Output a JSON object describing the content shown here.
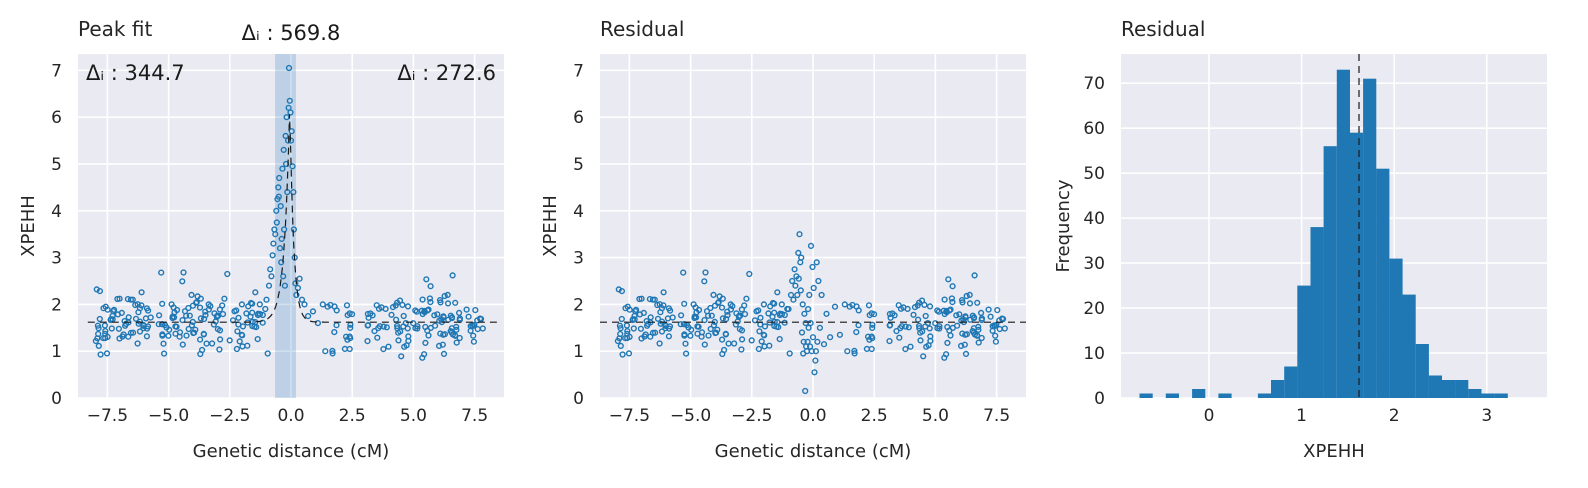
{
  "chart_data": [
    {
      "type": "scatter",
      "title": "Peak fit",
      "xlabel": "Genetic distance (cM)",
      "ylabel": "XPEHH",
      "xlim": [
        -8.7,
        8.7
      ],
      "ylim": [
        0,
        7.35
      ],
      "xticks": [
        -7.5,
        -5.0,
        -2.5,
        0.0,
        2.5,
        5.0,
        7.5
      ],
      "xtick_labels": [
        "−7.5",
        "−5.0",
        "−2.5",
        "0.0",
        "2.5",
        "5.0",
        "7.5"
      ],
      "yticks": [
        0,
        1,
        2,
        3,
        4,
        5,
        6,
        7
      ],
      "ytick_labels": [
        "0",
        "1",
        "2",
        "3",
        "4",
        "5",
        "6",
        "7"
      ],
      "grid": true,
      "baseline": 1.62,
      "peak": {
        "center": -0.05,
        "height": 6.3,
        "left_width": 0.35,
        "right_width": 0.25
      },
      "shaded_region": [
        -0.65,
        0.2
      ],
      "annotations": [
        {
          "text": "Δᵢ : 569.8",
          "position": "above-center"
        },
        {
          "text": "Δᵢ : 344.7",
          "position": "top-left"
        },
        {
          "text": "Δᵢ : 272.6",
          "position": "top-right"
        }
      ],
      "peak_points": [
        [
          -1.0,
          2.1
        ],
        [
          -0.9,
          2.4
        ],
        [
          -0.85,
          2.75
        ],
        [
          -0.8,
          2.6
        ],
        [
          -0.75,
          3.05
        ],
        [
          -0.72,
          3.3
        ],
        [
          -0.68,
          3.6
        ],
        [
          -0.64,
          3.5
        ],
        [
          -0.6,
          4.0
        ],
        [
          -0.58,
          3.75
        ],
        [
          -0.55,
          4.25
        ],
        [
          -0.52,
          4.5
        ],
        [
          -0.5,
          4.3
        ],
        [
          -0.48,
          4.7
        ],
        [
          -0.45,
          3.2
        ],
        [
          -0.42,
          4.1
        ],
        [
          -0.4,
          2.9
        ],
        [
          -0.38,
          3.4
        ],
        [
          -0.35,
          4.9
        ],
        [
          -0.32,
          2.6
        ],
        [
          -0.3,
          5.3
        ],
        [
          -0.28,
          3.6
        ],
        [
          -0.25,
          2.4
        ],
        [
          -0.22,
          5.6
        ],
        [
          -0.2,
          5.0
        ],
        [
          -0.18,
          6.0
        ],
        [
          -0.15,
          4.4
        ],
        [
          -0.12,
          5.5
        ],
        [
          -0.1,
          6.2
        ],
        [
          -0.08,
          7.05
        ],
        [
          -0.05,
          6.35
        ],
        [
          -0.02,
          6.1
        ],
        [
          0.0,
          5.5
        ],
        [
          0.03,
          5.7
        ],
        [
          0.06,
          4.95
        ],
        [
          0.1,
          4.4
        ],
        [
          0.12,
          3.6
        ],
        [
          0.15,
          3.0
        ],
        [
          0.18,
          2.45
        ],
        [
          0.22,
          2.2
        ],
        [
          0.28,
          2.35
        ],
        [
          0.35,
          2.55
        ],
        [
          0.45,
          2.1
        ],
        [
          0.55,
          2.0
        ],
        [
          0.7,
          1.75
        ],
        [
          0.9,
          1.85
        ],
        [
          1.1,
          1.6
        ],
        [
          1.3,
          2.0
        ],
        [
          1.5,
          1.95
        ]
      ]
    },
    {
      "type": "scatter",
      "title": "Residual",
      "xlabel": "Genetic distance (cM)",
      "ylabel": "XPEHH",
      "xlim": [
        -8.7,
        8.7
      ],
      "ylim": [
        0,
        7.35
      ],
      "xticks": [
        -7.5,
        -5.0,
        -2.5,
        0.0,
        2.5,
        5.0,
        7.5
      ],
      "xtick_labels": [
        "−7.5",
        "−5.0",
        "−2.5",
        "0.0",
        "2.5",
        "5.0",
        "7.5"
      ],
      "yticks": [
        0,
        1,
        2,
        3,
        4,
        5,
        6,
        7
      ],
      "ytick_labels": [
        "0",
        "1",
        "2",
        "3",
        "4",
        "5",
        "6",
        "7"
      ],
      "grid": true,
      "baseline": 1.62,
      "residual_points": [
        [
          -1.0,
          1.9
        ],
        [
          -0.9,
          2.2
        ],
        [
          -0.85,
          2.5
        ],
        [
          -0.8,
          2.1
        ],
        [
          -0.75,
          2.75
        ],
        [
          -0.72,
          2.4
        ],
        [
          -0.68,
          2.6
        ],
        [
          -0.64,
          2.2
        ],
        [
          -0.6,
          3.1
        ],
        [
          -0.58,
          2.55
        ],
        [
          -0.55,
          3.5
        ],
        [
          -0.52,
          2.9
        ],
        [
          -0.5,
          2.3
        ],
        [
          -0.48,
          3.0
        ],
        [
          -0.45,
          1.4
        ],
        [
          -0.42,
          2.0
        ],
        [
          -0.4,
          0.95
        ],
        [
          -0.38,
          1.2
        ],
        [
          -0.35,
          1.8
        ],
        [
          -0.32,
          0.15
        ],
        [
          -0.3,
          1.6
        ],
        [
          -0.28,
          1.1
        ],
        [
          -0.25,
          1.0
        ],
        [
          -0.22,
          1.2
        ],
        [
          -0.2,
          1.9
        ],
        [
          -0.18,
          1.5
        ],
        [
          -0.15,
          2.2
        ],
        [
          -0.12,
          1.1
        ],
        [
          -0.1,
          1.6
        ],
        [
          -0.08,
          3.25
        ],
        [
          -0.05,
          1.0
        ],
        [
          -0.02,
          2.8
        ],
        [
          0.0,
          1.3
        ],
        [
          0.03,
          2.35
        ],
        [
          0.06,
          0.55
        ],
        [
          0.1,
          0.8
        ],
        [
          0.12,
          1.0
        ],
        [
          0.15,
          2.9
        ],
        [
          0.18,
          1.2
        ],
        [
          0.22,
          2.5
        ],
        [
          0.28,
          1.5
        ],
        [
          0.35,
          2.2
        ],
        [
          0.45,
          1.15
        ],
        [
          0.55,
          1.8
        ],
        [
          0.7,
          1.3
        ],
        [
          0.9,
          1.95
        ],
        [
          1.1,
          1.35
        ],
        [
          1.3,
          2.0
        ],
        [
          1.5,
          1.95
        ]
      ]
    },
    {
      "type": "bar",
      "title": "Residual",
      "xlabel": "XPEHH",
      "ylabel": "Frequency",
      "xlim": [
        -0.95,
        3.65
      ],
      "ylim": [
        0,
        76.5
      ],
      "xticks": [
        0,
        1,
        2,
        3
      ],
      "xtick_labels": [
        "0",
        "1",
        "2",
        "3"
      ],
      "yticks": [
        0,
        10,
        20,
        30,
        40,
        50,
        60,
        70
      ],
      "ytick_labels": [
        "0",
        "10",
        "20",
        "30",
        "40",
        "50",
        "60",
        "70"
      ],
      "grid": true,
      "median_line": 1.62,
      "bin_width": 0.142,
      "bin_start": -0.75,
      "values": [
        1,
        0,
        1,
        0,
        2,
        0,
        1,
        0,
        0,
        1,
        4,
        7,
        25,
        38,
        56,
        73,
        59,
        71,
        51,
        31,
        23,
        12,
        5,
        4,
        4,
        2,
        1,
        1
      ]
    }
  ]
}
